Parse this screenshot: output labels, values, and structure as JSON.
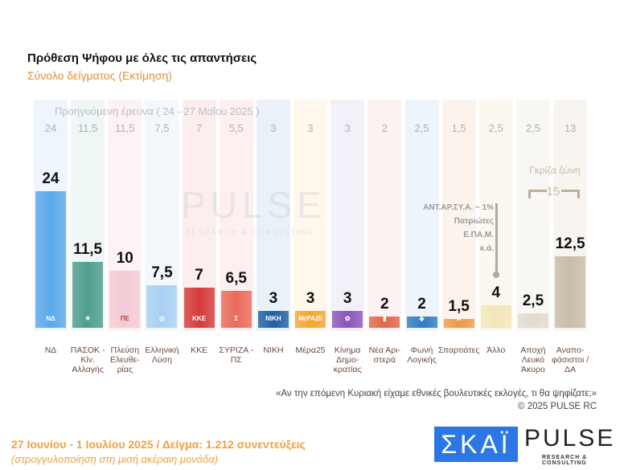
{
  "title": "Πρόθεση Ψήφου με όλες τις απαντήσεις",
  "subtitle": "Σύνολο δείγματος   (Εκτίμηση)",
  "watermark": {
    "text": "PULSE",
    "sub": "RESEARCH & CONSULTING"
  },
  "chart_data": {
    "type": "bar",
    "title": "Πρόθεση Ψήφου με όλες τις απαντήσεις",
    "previous_label": "Προηγούμενη έρευνα ( 24 - 27 Μαΐου 2025 )",
    "categories": [
      "ΝΔ",
      "ΠΑΣΟΚ - Κίν. Αλλαγής",
      "Πλεύση Ελευθε-ρίας",
      "Ελληνική Λύση",
      "ΚΚΕ",
      "ΣΥΡΙΖΑ - ΠΣ",
      "ΝΙΚΗ",
      "Μέρα25",
      "Κίνημα Δημο-κρατίας",
      "Νέα Αρι-στερά",
      "Φωνή Λογικής",
      "Σπαρτιάτες",
      "Άλλο",
      "Αποχή Λευκό Άκυρο",
      "Αναπο-φάσιστοι / ΔΑ"
    ],
    "series": [
      {
        "values": [
          24,
          11.5,
          10,
          7.5,
          7,
          6.5,
          3,
          3,
          3,
          2,
          2,
          1.5,
          4,
          2.5,
          12.5
        ],
        "labels": [
          "24",
          "11,5",
          "10",
          "7,5",
          "7",
          "6,5",
          "3",
          "3",
          "3",
          "2",
          "2",
          "1,5",
          "4",
          "2,5",
          "12,5"
        ]
      },
      {
        "name": "Προηγούμενη έρευνα",
        "values": [
          24,
          11.5,
          11.5,
          7.5,
          7,
          5.5,
          3,
          3,
          3,
          2,
          2.5,
          1.5,
          2.5,
          2.5,
          13
        ],
        "labels": [
          "24",
          "11,5",
          "11,5",
          "7,5",
          "7",
          "5,5",
          "3",
          "3",
          "3",
          "2",
          "2,5",
          "1,5",
          "2,5",
          "2,5",
          "13"
        ]
      }
    ],
    "colors": [
      "#5aa8ea",
      "#4f9e8e",
      "#f4cbd4",
      "#a8d0f4",
      "#d63a3c",
      "#ea6a5c",
      "#1f5fa6",
      "#f4a532",
      "#8c55ba",
      "#e0664a",
      "#2f7bc4",
      "#eb9a4a",
      "#f3e6b8",
      "#e2dbcf",
      "#c9bcaa"
    ],
    "bg_colors": [
      "#eef5fc",
      "#eef7f6",
      "#fdf2f4",
      "#f3f8fd",
      "#fdeeee",
      "#fdf0ef",
      "#eaf1f8",
      "#fff8ec",
      "#f4f0fa",
      "#fcf2ef",
      "#eef4fb",
      "#fcf4ec",
      "#fbf8f0",
      "#f9f7f4",
      "#f8f5f1"
    ],
    "logos": [
      "ΝΔ",
      "☀",
      "ΠΕ",
      "◎",
      "ΚΚΕ",
      "Σ",
      "ΝΙΚΗ",
      "ΜέΡΑ25",
      "✿",
      "▮",
      "◈",
      "⚔",
      "",
      "",
      ""
    ],
    "ylim": [
      0,
      25
    ],
    "annotations": {
      "allo_note": [
        "ΑΝΤ.ΑΡ.ΣΥ.Α.  ~ 1%",
        "Πατριώτες",
        "Ε.ΠΑ.Μ.",
        "κ.ά."
      ],
      "grey_zone_label": "Γκρίζα ζώνη",
      "grey_zone_value": "15"
    }
  },
  "question": "«Αν την επόμενη Κυριακή είχαμε εθνικές βουλευτικές εκλογές, τι θα ψηφίζατε;»",
  "copyright": "©  2025  PULSE RC",
  "footer": {
    "dates": "27 Ιουνίου - 1 Ιουλίου 2025  /  Δείγμα:  1.212 συνεντεύξεις",
    "note": "(στρογγυλοποίηση στη μισή ακέραιη μονάδα)"
  },
  "logos": {
    "skai": "ΣΚΑΪ",
    "pulse": "PULSE",
    "pulse_sub": "RESEARCH & CONSULTING"
  }
}
